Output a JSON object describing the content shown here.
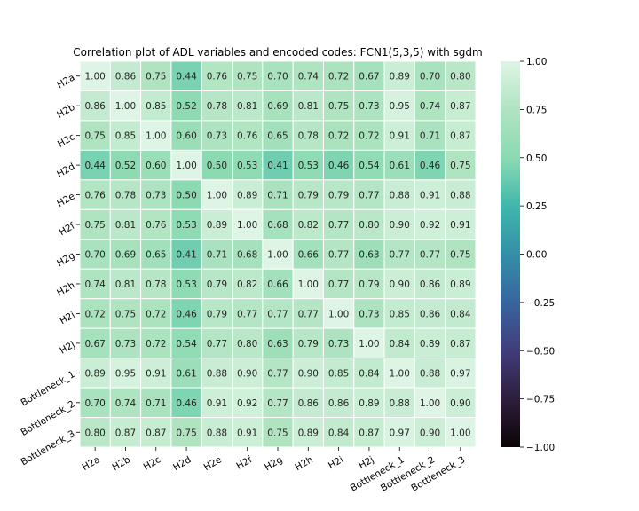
{
  "chart_data": {
    "type": "heatmap",
    "title": "Correlation plot of ADL variables and encoded codes: FCN1(5,3,5) with sgdm",
    "row_labels": [
      "H2a",
      "H2b",
      "H2c",
      "H2d",
      "H2e",
      "H2f",
      "H2g",
      "H2h",
      "H2i",
      "H2j",
      "Bottleneck_1",
      "Bottleneck_2",
      "Bottleneck_3"
    ],
    "col_labels": [
      "H2a",
      "H2b",
      "H2c",
      "H2d",
      "H2e",
      "H2f",
      "H2g",
      "H2h",
      "H2i",
      "H2j",
      "Bottleneck_1",
      "Bottleneck_2",
      "Bottleneck_3"
    ],
    "values": [
      [
        1.0,
        0.86,
        0.75,
        0.44,
        0.76,
        0.75,
        0.7,
        0.74,
        0.72,
        0.67,
        0.89,
        0.7,
        0.8
      ],
      [
        0.86,
        1.0,
        0.85,
        0.52,
        0.78,
        0.81,
        0.69,
        0.81,
        0.75,
        0.73,
        0.95,
        0.74,
        0.87
      ],
      [
        0.75,
        0.85,
        1.0,
        0.6,
        0.73,
        0.76,
        0.65,
        0.78,
        0.72,
        0.72,
        0.91,
        0.71,
        0.87
      ],
      [
        0.44,
        0.52,
        0.6,
        1.0,
        0.5,
        0.53,
        0.41,
        0.53,
        0.46,
        0.54,
        0.61,
        0.46,
        0.75
      ],
      [
        0.76,
        0.78,
        0.73,
        0.5,
        1.0,
        0.89,
        0.71,
        0.79,
        0.79,
        0.77,
        0.88,
        0.91,
        0.88
      ],
      [
        0.75,
        0.81,
        0.76,
        0.53,
        0.89,
        1.0,
        0.68,
        0.82,
        0.77,
        0.8,
        0.9,
        0.92,
        0.91
      ],
      [
        0.7,
        0.69,
        0.65,
        0.41,
        0.71,
        0.68,
        1.0,
        0.66,
        0.77,
        0.63,
        0.77,
        0.77,
        0.75
      ],
      [
        0.74,
        0.81,
        0.78,
        0.53,
        0.79,
        0.82,
        0.66,
        1.0,
        0.77,
        0.79,
        0.9,
        0.86,
        0.89
      ],
      [
        0.72,
        0.75,
        0.72,
        0.46,
        0.79,
        0.77,
        0.77,
        0.77,
        1.0,
        0.73,
        0.85,
        0.86,
        0.84
      ],
      [
        0.67,
        0.73,
        0.72,
        0.54,
        0.77,
        0.8,
        0.63,
        0.79,
        0.73,
        1.0,
        0.84,
        0.89,
        0.87
      ],
      [
        0.89,
        0.95,
        0.91,
        0.61,
        0.88,
        0.9,
        0.77,
        0.9,
        0.85,
        0.84,
        1.0,
        0.88,
        0.97
      ],
      [
        0.7,
        0.74,
        0.71,
        0.46,
        0.91,
        0.92,
        0.77,
        0.86,
        0.86,
        0.89,
        0.88,
        1.0,
        0.9
      ],
      [
        0.8,
        0.87,
        0.87,
        0.75,
        0.88,
        0.91,
        0.75,
        0.89,
        0.84,
        0.87,
        0.97,
        0.9,
        1.0
      ]
    ],
    "value_format": "2 decimals",
    "colorbar": {
      "range": [
        -1.0,
        1.0
      ],
      "ticks": [
        1.0,
        0.75,
        0.5,
        0.25,
        0.0,
        -0.25,
        -0.5,
        -0.75,
        -1.0
      ],
      "tick_labels": [
        "1.00",
        "0.75",
        "0.50",
        "0.25",
        "0.00",
        "−0.25",
        "−0.50",
        "−0.75",
        "−1.00"
      ],
      "colormap": "mako",
      "colormap_stops": [
        {
          "v": -1.0,
          "color": "#0b0405"
        },
        {
          "v": -0.75,
          "color": "#2e1e3c"
        },
        {
          "v": -0.5,
          "color": "#413d7b"
        },
        {
          "v": -0.25,
          "color": "#37659e"
        },
        {
          "v": 0.0,
          "color": "#348fa7"
        },
        {
          "v": 0.25,
          "color": "#40b7ad"
        },
        {
          "v": 0.5,
          "color": "#8bdab2"
        },
        {
          "v": 0.75,
          "color": "#b0e4c1"
        },
        {
          "v": 1.0,
          "color": "#def5e5"
        }
      ]
    },
    "cell_border_color": "#ffffff",
    "grid": false
  }
}
